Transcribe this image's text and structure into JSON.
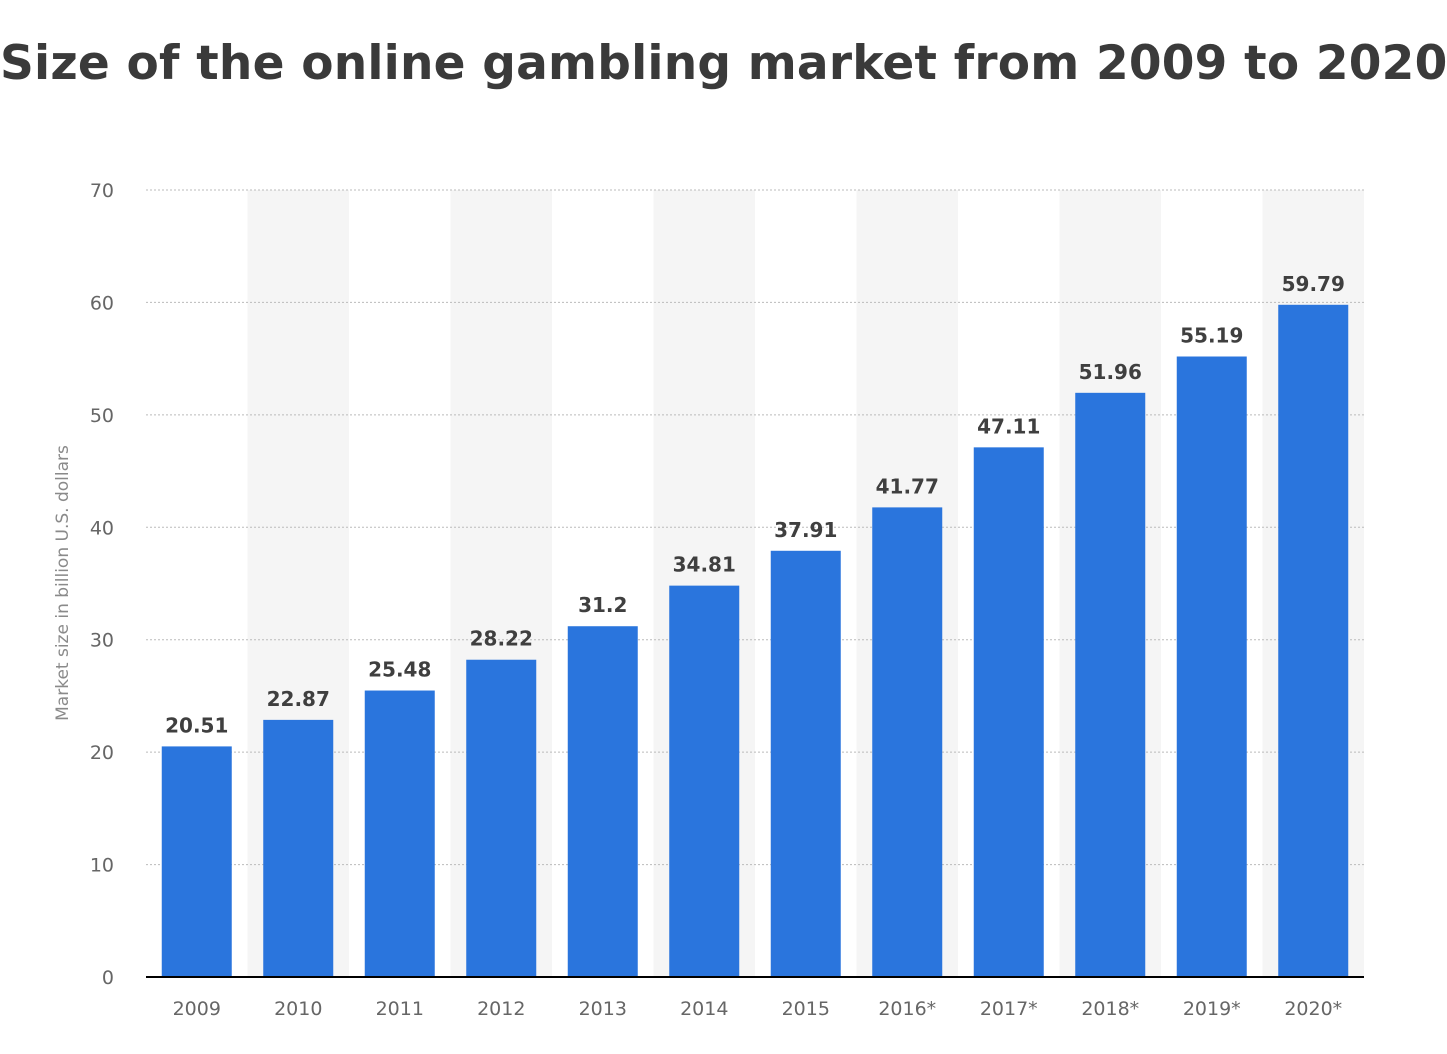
{
  "chart_data": {
    "type": "bar",
    "title": "Size of the online gambling market from 2009 to 2020",
    "xlabel": "",
    "ylabel": "Market size in billion U.S. dollars",
    "categories": [
      "2009",
      "2010",
      "2011",
      "2012",
      "2013",
      "2014",
      "2015",
      "2016*",
      "2017*",
      "2018*",
      "2019*",
      "2020*"
    ],
    "values": [
      20.51,
      22.87,
      25.48,
      28.22,
      31.2,
      34.81,
      37.91,
      41.77,
      47.11,
      51.96,
      55.19,
      59.79
    ],
    "value_labels": [
      "20.51",
      "22.87",
      "25.48",
      "28.22",
      "31.2",
      "34.81",
      "37.91",
      "41.77",
      "47.11",
      "51.96",
      "55.19",
      "59.79"
    ],
    "ylim": [
      0,
      70
    ],
    "yticks": [
      "0",
      "10",
      "20",
      "30",
      "40",
      "50",
      "60",
      "70"
    ],
    "grid": true,
    "colors": {
      "bar": "#2a75dd",
      "band": "#f5f5f5",
      "grid": "#bbbbbb",
      "axis": "#000000"
    }
  }
}
